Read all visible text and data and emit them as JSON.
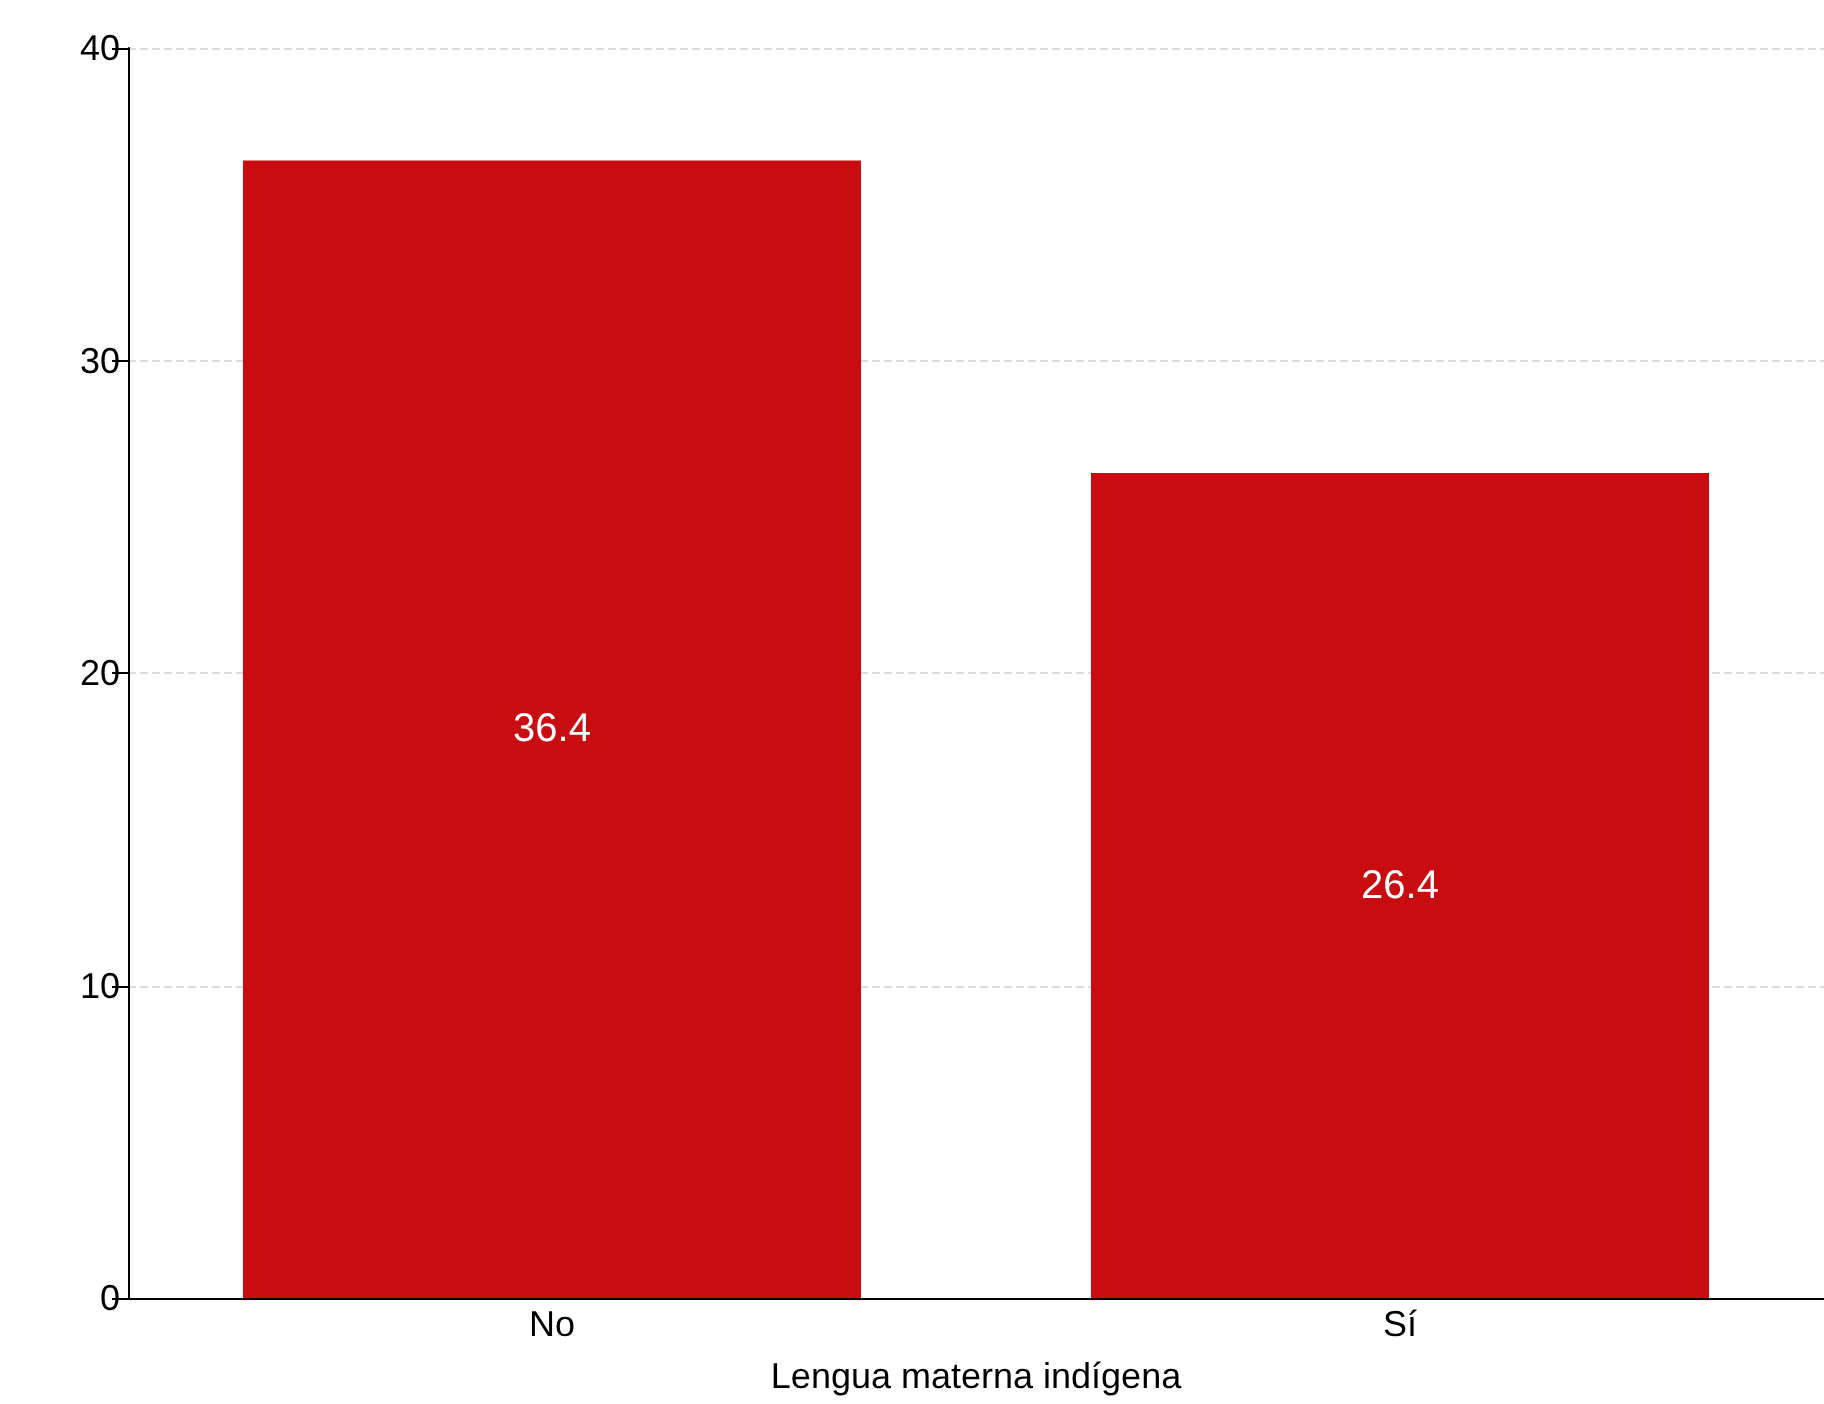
{
  "chart_data": {
    "type": "bar",
    "xlabel": "Lengua materna indígena",
    "categories": [
      "No",
      "Sí"
    ],
    "values": [
      36.4,
      26.4
    ],
    "color": "#c80c0f",
    "ylim": [
      0,
      40
    ],
    "yticks": [
      0,
      10,
      20,
      30,
      40
    ],
    "grid": "y",
    "data_labels": true
  }
}
